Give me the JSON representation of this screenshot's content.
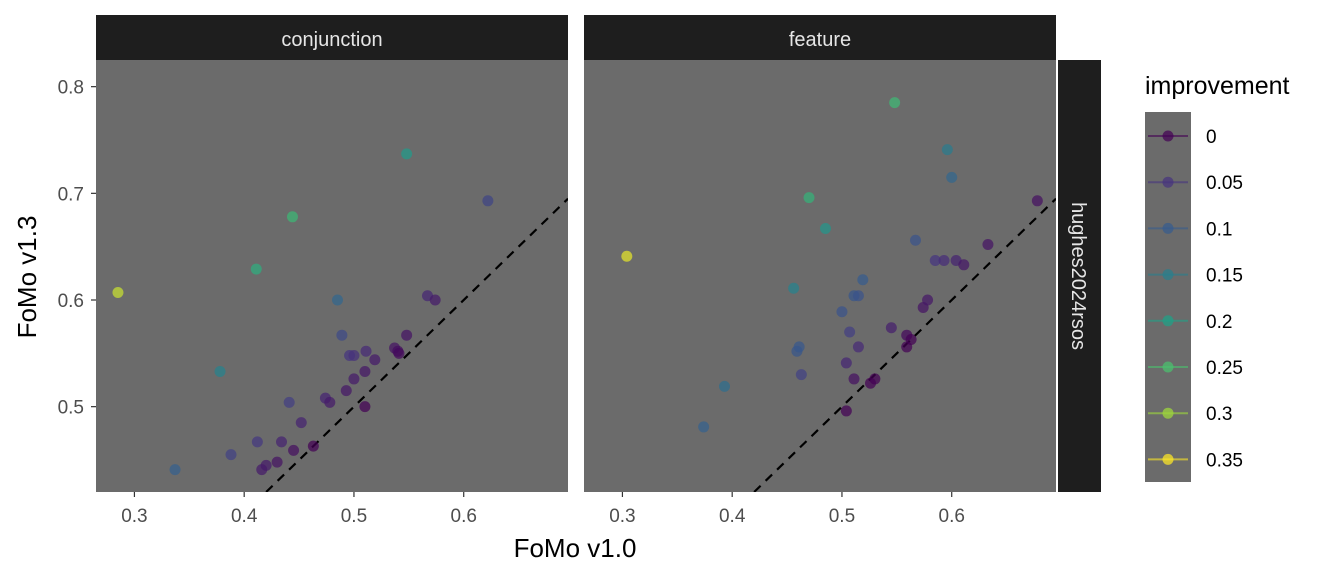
{
  "chart_data": {
    "type": "scatter",
    "xlabel": "FoMo v1.0",
    "ylabel": "FoMo v1.3",
    "xlim": [
      0.265,
      0.695
    ],
    "ylim": [
      0.42,
      0.825
    ],
    "x_ticks": [
      "0.3",
      "0.4",
      "0.5",
      "0.6"
    ],
    "y_ticks": [
      "0.5",
      "0.6",
      "0.7",
      "0.8"
    ],
    "facet_row_label": "hughes2024rsos",
    "reference_line": "y = x (dashed)",
    "legend": {
      "title": "improvement",
      "position": "right",
      "entries": [
        {
          "label": "0",
          "color": "#440154"
        },
        {
          "label": "0.05",
          "color": "#46337E"
        },
        {
          "label": "0.1",
          "color": "#365C8D"
        },
        {
          "label": "0.15",
          "color": "#277F8E"
        },
        {
          "label": "0.2",
          "color": "#1FA187"
        },
        {
          "label": "0.25",
          "color": "#4AC16D"
        },
        {
          "label": "0.3",
          "color": "#9FDA3A"
        },
        {
          "label": "0.35",
          "color": "#FDE725"
        }
      ]
    },
    "panels": [
      {
        "label": "conjunction",
        "points": [
          {
            "x": 0.285,
            "y": 0.607,
            "improvement": 0.322
          },
          {
            "x": 0.337,
            "y": 0.441,
            "improvement": 0.104
          },
          {
            "x": 0.378,
            "y": 0.533,
            "improvement": 0.155
          },
          {
            "x": 0.388,
            "y": 0.455,
            "improvement": 0.067
          },
          {
            "x": 0.411,
            "y": 0.629,
            "improvement": 0.218
          },
          {
            "x": 0.412,
            "y": 0.467,
            "improvement": 0.055
          },
          {
            "x": 0.416,
            "y": 0.441,
            "improvement": 0.025
          },
          {
            "x": 0.42,
            "y": 0.445,
            "improvement": 0.025
          },
          {
            "x": 0.43,
            "y": 0.448,
            "improvement": 0.018
          },
          {
            "x": 0.434,
            "y": 0.467,
            "improvement": 0.033
          },
          {
            "x": 0.441,
            "y": 0.504,
            "improvement": 0.063
          },
          {
            "x": 0.444,
            "y": 0.678,
            "improvement": 0.234
          },
          {
            "x": 0.445,
            "y": 0.459,
            "improvement": 0.014
          },
          {
            "x": 0.452,
            "y": 0.485,
            "improvement": 0.033
          },
          {
            "x": 0.463,
            "y": 0.463,
            "improvement": 0.0
          },
          {
            "x": 0.474,
            "y": 0.508,
            "improvement": 0.034
          },
          {
            "x": 0.478,
            "y": 0.504,
            "improvement": 0.026
          },
          {
            "x": 0.485,
            "y": 0.6,
            "improvement": 0.115
          },
          {
            "x": 0.489,
            "y": 0.567,
            "improvement": 0.078
          },
          {
            "x": 0.493,
            "y": 0.515,
            "improvement": 0.022
          },
          {
            "x": 0.496,
            "y": 0.548,
            "improvement": 0.052
          },
          {
            "x": 0.5,
            "y": 0.526,
            "improvement": 0.026
          },
          {
            "x": 0.5,
            "y": 0.548,
            "improvement": 0.048
          },
          {
            "x": 0.51,
            "y": 0.5,
            "improvement": 0.0
          },
          {
            "x": 0.51,
            "y": 0.533,
            "improvement": 0.023
          },
          {
            "x": 0.511,
            "y": 0.552,
            "improvement": 0.041
          },
          {
            "x": 0.519,
            "y": 0.544,
            "improvement": 0.025
          },
          {
            "x": 0.537,
            "y": 0.555,
            "improvement": 0.018
          },
          {
            "x": 0.54,
            "y": 0.552,
            "improvement": 0.012
          },
          {
            "x": 0.541,
            "y": 0.55,
            "improvement": 0.009
          },
          {
            "x": 0.548,
            "y": 0.737,
            "improvement": 0.189
          },
          {
            "x": 0.548,
            "y": 0.567,
            "improvement": 0.019
          },
          {
            "x": 0.567,
            "y": 0.604,
            "improvement": 0.037
          },
          {
            "x": 0.574,
            "y": 0.6,
            "improvement": 0.026
          },
          {
            "x": 0.622,
            "y": 0.693,
            "improvement": 0.071
          }
        ]
      },
      {
        "label": "feature",
        "points": [
          {
            "x": 0.304,
            "y": 0.641,
            "improvement": 0.337
          },
          {
            "x": 0.374,
            "y": 0.481,
            "improvement": 0.107
          },
          {
            "x": 0.393,
            "y": 0.519,
            "improvement": 0.126
          },
          {
            "x": 0.456,
            "y": 0.611,
            "improvement": 0.155
          },
          {
            "x": 0.459,
            "y": 0.552,
            "improvement": 0.093
          },
          {
            "x": 0.461,
            "y": 0.556,
            "improvement": 0.095
          },
          {
            "x": 0.463,
            "y": 0.53,
            "improvement": 0.067
          },
          {
            "x": 0.47,
            "y": 0.696,
            "improvement": 0.226
          },
          {
            "x": 0.485,
            "y": 0.667,
            "improvement": 0.182
          },
          {
            "x": 0.5,
            "y": 0.589,
            "improvement": 0.089
          },
          {
            "x": 0.504,
            "y": 0.541,
            "improvement": 0.037
          },
          {
            "x": 0.504,
            "y": 0.496,
            "improvement": 0.0
          },
          {
            "x": 0.507,
            "y": 0.57,
            "improvement": 0.063
          },
          {
            "x": 0.511,
            "y": 0.604,
            "improvement": 0.093
          },
          {
            "x": 0.511,
            "y": 0.526,
            "improvement": 0.015
          },
          {
            "x": 0.515,
            "y": 0.604,
            "improvement": 0.089
          },
          {
            "x": 0.515,
            "y": 0.556,
            "improvement": 0.041
          },
          {
            "x": 0.519,
            "y": 0.619,
            "improvement": 0.1
          },
          {
            "x": 0.526,
            "y": 0.522,
            "improvement": 0.0
          },
          {
            "x": 0.53,
            "y": 0.526,
            "improvement": 0.0
          },
          {
            "x": 0.545,
            "y": 0.574,
            "improvement": 0.029
          },
          {
            "x": 0.548,
            "y": 0.785,
            "improvement": 0.237
          },
          {
            "x": 0.559,
            "y": 0.567,
            "improvement": 0.008
          },
          {
            "x": 0.559,
            "y": 0.556,
            "improvement": 0.0
          },
          {
            "x": 0.563,
            "y": 0.563,
            "improvement": 0.0
          },
          {
            "x": 0.567,
            "y": 0.656,
            "improvement": 0.089
          },
          {
            "x": 0.574,
            "y": 0.593,
            "improvement": 0.019
          },
          {
            "x": 0.578,
            "y": 0.6,
            "improvement": 0.022
          },
          {
            "x": 0.585,
            "y": 0.637,
            "improvement": 0.052
          },
          {
            "x": 0.593,
            "y": 0.637,
            "improvement": 0.044
          },
          {
            "x": 0.596,
            "y": 0.741,
            "improvement": 0.145
          },
          {
            "x": 0.6,
            "y": 0.715,
            "improvement": 0.115
          },
          {
            "x": 0.604,
            "y": 0.637,
            "improvement": 0.033
          },
          {
            "x": 0.611,
            "y": 0.633,
            "improvement": 0.022
          },
          {
            "x": 0.633,
            "y": 0.652,
            "improvement": 0.019
          },
          {
            "x": 0.678,
            "y": 0.693,
            "improvement": 0.015
          }
        ]
      }
    ]
  }
}
